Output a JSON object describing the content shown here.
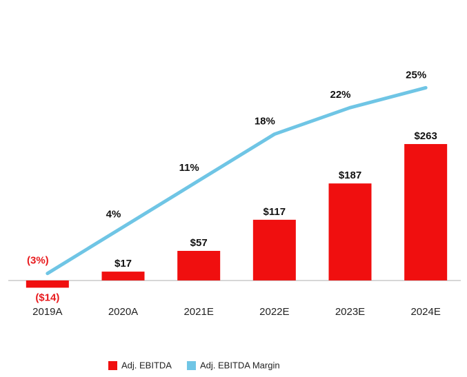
{
  "chart_data": {
    "type": "bar_line",
    "categories": [
      "2019A",
      "2020A",
      "2021E",
      "2022E",
      "2023E",
      "2024E"
    ],
    "series": [
      {
        "name": "Adj. EBITDA",
        "color": "#f00f0f",
        "values": [
          -14,
          17,
          57,
          117,
          187,
          263
        ],
        "value_labels": [
          "($14)",
          "$17",
          "$57",
          "$117",
          "$187",
          "$263"
        ]
      },
      {
        "name": "Adj. EBITDA Margin",
        "color": "#6fc5e5",
        "axis": "y2",
        "values": [
          -3,
          4,
          11,
          18,
          22,
          25
        ],
        "value_labels": [
          "(3%)",
          "4%",
          "11%",
          "18%",
          "22%",
          "25%"
        ]
      }
    ],
    "ylim": [
      -44,
      461
    ],
    "y2lim": [
      -7.5,
      32
    ]
  }
}
